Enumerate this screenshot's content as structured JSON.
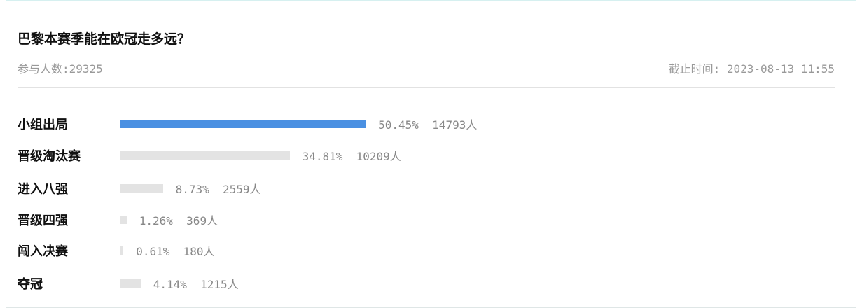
{
  "poll": {
    "title": "巴黎本赛季能在欧冠走多远？",
    "participants": "参与人数:29325",
    "deadline": "截止时间: 2023-08-13 11:55",
    "accent_color": "#4a90e2",
    "options": [
      {
        "label": "小组出局",
        "percent": 50.45,
        "percent_text": "50.45%",
        "votes": "14793人"
      },
      {
        "label": "晋级淘汰赛",
        "percent": 34.81,
        "percent_text": "34.81%",
        "votes": "10209人"
      },
      {
        "label": "进入八强",
        "percent": 8.73,
        "percent_text": "8.73%",
        "votes": "2559人"
      },
      {
        "label": "晋级四强",
        "percent": 1.26,
        "percent_text": "1.26%",
        "votes": "369人"
      },
      {
        "label": "闯入决赛",
        "percent": 0.61,
        "percent_text": "0.61%",
        "votes": "180人"
      },
      {
        "label": "夺冠",
        "percent": 4.14,
        "percent_text": "4.14%",
        "votes": "1215人"
      }
    ]
  }
}
